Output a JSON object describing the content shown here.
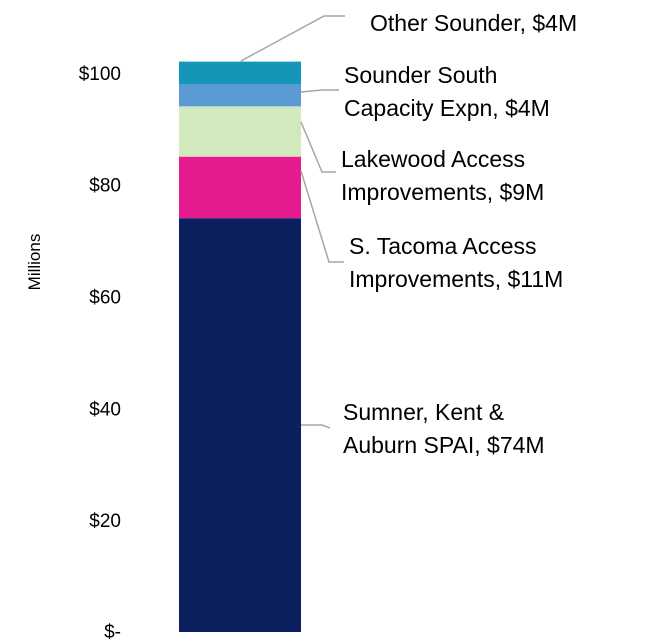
{
  "chart_data": {
    "type": "bar",
    "stacked": true,
    "categories": [
      ""
    ],
    "ylabel": "Millions",
    "ylim": [
      0,
      103
    ],
    "y_ticks": [
      {
        "value": 0,
        "label": "$-"
      },
      {
        "value": 20,
        "label": "$20"
      },
      {
        "value": 40,
        "label": "$40"
      },
      {
        "value": 60,
        "label": "$60"
      },
      {
        "value": 80,
        "label": "$80"
      },
      {
        "value": 100,
        "label": "$100"
      }
    ],
    "grid": false,
    "legend": "none",
    "series": [
      {
        "name": "Sumner, Kent & Auburn SPAI",
        "values": [
          74
        ],
        "color": "#0c2060",
        "label_lines": [
          "Sumner, Kent &",
          "Auburn SPAI, $74M"
        ]
      },
      {
        "name": "S. Tacoma Access Improvements",
        "values": [
          11
        ],
        "color": "#e61b8f",
        "label_lines": [
          "S. Tacoma Access",
          "Improvements, $11M"
        ]
      },
      {
        "name": "Lakewood Access Improvements",
        "values": [
          9
        ],
        "color": "#d2e8bd",
        "label_lines": [
          "Lakewood Access",
          "Improvements, $9M"
        ]
      },
      {
        "name": "Sounder South Capacity Expn",
        "values": [
          4
        ],
        "color": "#5b9bd5",
        "label_lines": [
          "Sounder South",
          "Capacity Expn, $4M"
        ]
      },
      {
        "name": "Other Sounder",
        "values": [
          4
        ],
        "color": "#1497b6",
        "label_lines": [
          "Other Sounder, $4M"
        ]
      }
    ]
  }
}
